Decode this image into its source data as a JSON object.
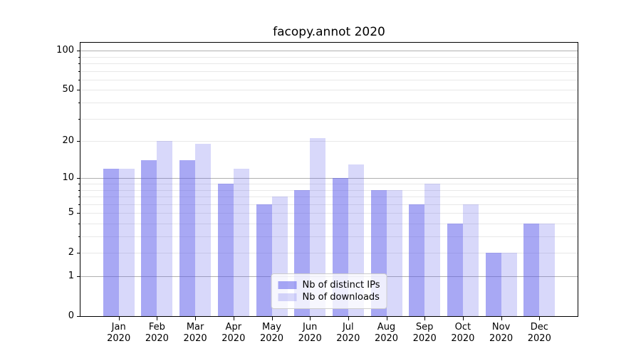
{
  "chart_data": {
    "type": "bar",
    "title": "facopy.annot 2020",
    "categories": [
      "Jan",
      "Feb",
      "Mar",
      "Apr",
      "May",
      "Jun",
      "Jul",
      "Aug",
      "Sep",
      "Oct",
      "Nov",
      "Dec"
    ],
    "category_year": "2020",
    "series": [
      {
        "name": "Nb of distinct IPs",
        "color": "rgba(90,90,235,0.53)",
        "values": [
          12,
          14,
          14,
          9,
          6,
          8,
          10,
          8,
          6,
          4,
          2,
          4
        ]
      },
      {
        "name": "Nb of downloads",
        "color": "rgba(90,90,235,0.24)",
        "values": [
          12,
          20,
          19,
          12,
          7,
          21,
          13,
          8,
          9,
          6,
          2,
          4
        ]
      }
    ],
    "yscale": "log1p",
    "ylim": [
      0,
      115
    ],
    "y_tick_labels": [
      100,
      50,
      20,
      10,
      5,
      2,
      1,
      0
    ],
    "y_gridlines_major": [
      1,
      10,
      100
    ],
    "y_gridlines_minor": [
      2,
      3,
      4,
      5,
      6,
      7,
      8,
      9,
      20,
      30,
      40,
      50,
      60,
      70,
      80,
      90
    ],
    "grid": true,
    "legend_position": "lower center",
    "colors": {
      "bar_distinct_ips": "rgba(90,90,235,0.53)",
      "bar_downloads": "rgba(90,90,235,0.24)",
      "grid_major": "#b0b0b0",
      "grid_minor": "#e8e8e8",
      "spine": "#000000",
      "text": "#000000"
    }
  }
}
